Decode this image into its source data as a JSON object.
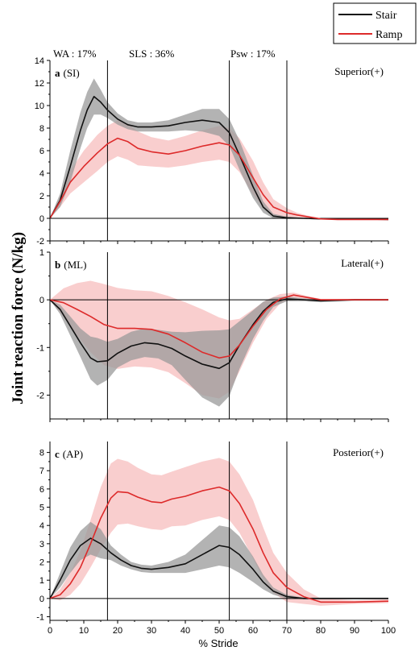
{
  "figure": {
    "ylabel": "Joint reaction force (N/kg)",
    "xlabel": "% Stride",
    "phase_labels": [
      "WA : 17%",
      "SLS : 36%",
      "Psw : 17%"
    ],
    "phase_lines_x": [
      17,
      53,
      70
    ],
    "colors": {
      "stair": "#111111",
      "stair_band": "#9a9a9a",
      "ramp": "#dd2a2a",
      "ramp_band": "#f7b9b9"
    }
  },
  "legend": {
    "items": [
      {
        "label": "Stair",
        "color": "#111111"
      },
      {
        "label": "Ramp",
        "color": "#dd2a2a"
      }
    ]
  },
  "chart_data": [
    {
      "type": "line",
      "panel_letter": "a",
      "panel_label": "(SI)",
      "direction_label": "Superior(+)",
      "xlabel": "% Stride",
      "xlim": [
        0,
        100
      ],
      "ylim": [
        -2,
        14
      ],
      "yticks": [
        -2,
        0,
        2,
        4,
        6,
        8,
        10,
        12,
        14
      ],
      "xticks": [
        0,
        10,
        20,
        30,
        40,
        50,
        60,
        70,
        80,
        90,
        100
      ],
      "show_xtick_labels": false,
      "series": [
        {
          "name": "Stair",
          "x": [
            0,
            3,
            6,
            9,
            11,
            13,
            15,
            17,
            20,
            23,
            26,
            30,
            35,
            40,
            45,
            50,
            53,
            56,
            60,
            63,
            66,
            70,
            75,
            80,
            90,
            100
          ],
          "y": [
            0,
            1.6,
            4.6,
            7.8,
            9.6,
            10.8,
            10.3,
            9.6,
            8.8,
            8.3,
            8.1,
            8.1,
            8.2,
            8.5,
            8.7,
            8.5,
            7.6,
            5.6,
            2.8,
            1.0,
            0.2,
            0.05,
            0,
            -0.05,
            -0.05,
            -0.1
          ],
          "band": [
            0,
            0.6,
            1.4,
            1.6,
            1.6,
            1.6,
            1.1,
            0.7,
            0.5,
            0.4,
            0.4,
            0.4,
            0.5,
            0.7,
            1.0,
            1.2,
            1.2,
            1.3,
            1.0,
            0.5,
            0.2,
            0.1,
            0.05,
            0.05,
            0.05,
            0.05
          ]
        },
        {
          "name": "Ramp",
          "x": [
            0,
            3,
            6,
            10,
            14,
            17,
            20,
            23,
            26,
            30,
            35,
            40,
            45,
            50,
            53,
            56,
            60,
            63,
            66,
            70,
            73,
            76,
            80,
            85,
            90,
            100
          ],
          "y": [
            0,
            1.5,
            3.2,
            4.6,
            5.8,
            6.6,
            7.1,
            6.8,
            6.2,
            5.9,
            5.7,
            6.0,
            6.4,
            6.7,
            6.5,
            5.6,
            3.6,
            2.1,
            1.0,
            0.5,
            0.3,
            0.15,
            -0.05,
            -0.1,
            -0.1,
            -0.1
          ],
          "band": [
            0,
            0.5,
            1.0,
            1.4,
            1.6,
            1.6,
            1.6,
            1.6,
            1.5,
            1.3,
            1.2,
            1.3,
            1.4,
            1.5,
            1.5,
            1.5,
            1.5,
            1.1,
            0.7,
            0.4,
            0.2,
            0.1,
            0.05,
            0.05,
            0.05,
            0.05
          ]
        }
      ]
    },
    {
      "type": "line",
      "panel_letter": "b",
      "panel_label": "(ML)",
      "direction_label": "Lateral(+)",
      "xlabel": "% Stride",
      "xlim": [
        0,
        100
      ],
      "ylim": [
        -2.5,
        1
      ],
      "yticks": [
        -2,
        -1,
        0,
        1
      ],
      "xticks": [
        0,
        10,
        20,
        30,
        40,
        50,
        60,
        70,
        80,
        90,
        100
      ],
      "show_xtick_labels": false,
      "series": [
        {
          "name": "Stair",
          "x": [
            0,
            3,
            6,
            9,
            12,
            14,
            17,
            20,
            24,
            28,
            32,
            36,
            40,
            45,
            50,
            53,
            56,
            60,
            63,
            66,
            70,
            75,
            80,
            90,
            100
          ],
          "y": [
            0,
            -0.2,
            -0.55,
            -0.9,
            -1.22,
            -1.3,
            -1.28,
            -1.12,
            -0.97,
            -0.9,
            -0.93,
            -1.02,
            -1.18,
            -1.35,
            -1.44,
            -1.32,
            -0.95,
            -0.52,
            -0.24,
            -0.05,
            0.02,
            0,
            -0.02,
            0,
            0
          ],
          "band": [
            0,
            0.1,
            0.2,
            0.3,
            0.45,
            0.5,
            0.4,
            0.3,
            0.3,
            0.3,
            0.3,
            0.35,
            0.5,
            0.7,
            0.8,
            0.7,
            0.5,
            0.3,
            0.2,
            0.1,
            0.05,
            0.03,
            0.03,
            0.02,
            0.02
          ]
        },
        {
          "name": "Ramp",
          "x": [
            0,
            4,
            8,
            12,
            16,
            20,
            25,
            30,
            35,
            40,
            45,
            50,
            53,
            56,
            60,
            64,
            68,
            72,
            76,
            80,
            90,
            100
          ],
          "y": [
            0,
            -0.06,
            -0.2,
            -0.35,
            -0.52,
            -0.6,
            -0.6,
            -0.62,
            -0.72,
            -0.9,
            -1.1,
            -1.22,
            -1.18,
            -0.95,
            -0.55,
            -0.2,
            0.02,
            0.1,
            0.05,
            0,
            0,
            0
          ],
          "band": [
            0,
            0.3,
            0.55,
            0.75,
            0.85,
            0.85,
            0.8,
            0.8,
            0.8,
            0.85,
            0.9,
            0.85,
            0.75,
            0.55,
            0.35,
            0.2,
            0.1,
            0.05,
            0.03,
            0.02,
            0.02,
            0.02
          ]
        }
      ]
    },
    {
      "type": "line",
      "panel_letter": "c",
      "panel_label": "(AP)",
      "direction_label": "Posterior(+)",
      "xlabel": "% Stride",
      "xlim": [
        0,
        100
      ],
      "ylim": [
        -1.2,
        8.6
      ],
      "yticks": [
        -1,
        0,
        1,
        2,
        3,
        4,
        5,
        6,
        7,
        8
      ],
      "xticks": [
        0,
        10,
        20,
        30,
        40,
        50,
        60,
        70,
        80,
        90,
        100
      ],
      "show_xtick_labels": true,
      "series": [
        {
          "name": "Stair",
          "x": [
            0,
            3,
            6,
            9,
            12,
            15,
            18,
            21,
            24,
            27,
            30,
            35,
            40,
            45,
            50,
            53,
            56,
            60,
            63,
            66,
            70,
            75,
            80,
            90,
            100
          ],
          "y": [
            0,
            1.0,
            2.1,
            2.9,
            3.3,
            3.0,
            2.5,
            2.1,
            1.8,
            1.65,
            1.6,
            1.7,
            1.9,
            2.4,
            2.9,
            2.8,
            2.4,
            1.6,
            0.9,
            0.4,
            0.1,
            0,
            0,
            0,
            0
          ],
          "band": [
            0,
            0.4,
            0.7,
            0.8,
            0.9,
            0.8,
            0.4,
            0.3,
            0.2,
            0.2,
            0.2,
            0.3,
            0.5,
            0.8,
            1.1,
            1.1,
            1.0,
            0.7,
            0.4,
            0.2,
            0.1,
            0.05,
            0.05,
            0.05,
            0.05
          ]
        },
        {
          "name": "Ramp",
          "x": [
            0,
            3,
            6,
            9,
            12,
            15,
            18,
            20,
            23,
            26,
            30,
            33,
            36,
            40,
            45,
            50,
            53,
            56,
            60,
            63,
            66,
            70,
            75,
            80,
            90,
            100
          ],
          "y": [
            0,
            0.2,
            0.8,
            1.7,
            3.0,
            4.4,
            5.5,
            5.85,
            5.8,
            5.55,
            5.3,
            5.25,
            5.45,
            5.6,
            5.9,
            6.1,
            5.9,
            5.2,
            3.8,
            2.5,
            1.4,
            0.6,
            0.1,
            -0.2,
            -0.2,
            -0.15
          ],
          "band": [
            0,
            0.3,
            0.6,
            0.9,
            1.3,
            1.7,
            1.9,
            1.8,
            1.7,
            1.6,
            1.5,
            1.5,
            1.5,
            1.6,
            1.6,
            1.6,
            1.6,
            1.6,
            1.6,
            1.4,
            1.1,
            0.8,
            0.4,
            0.2,
            0.1,
            0.1
          ]
        }
      ]
    }
  ]
}
